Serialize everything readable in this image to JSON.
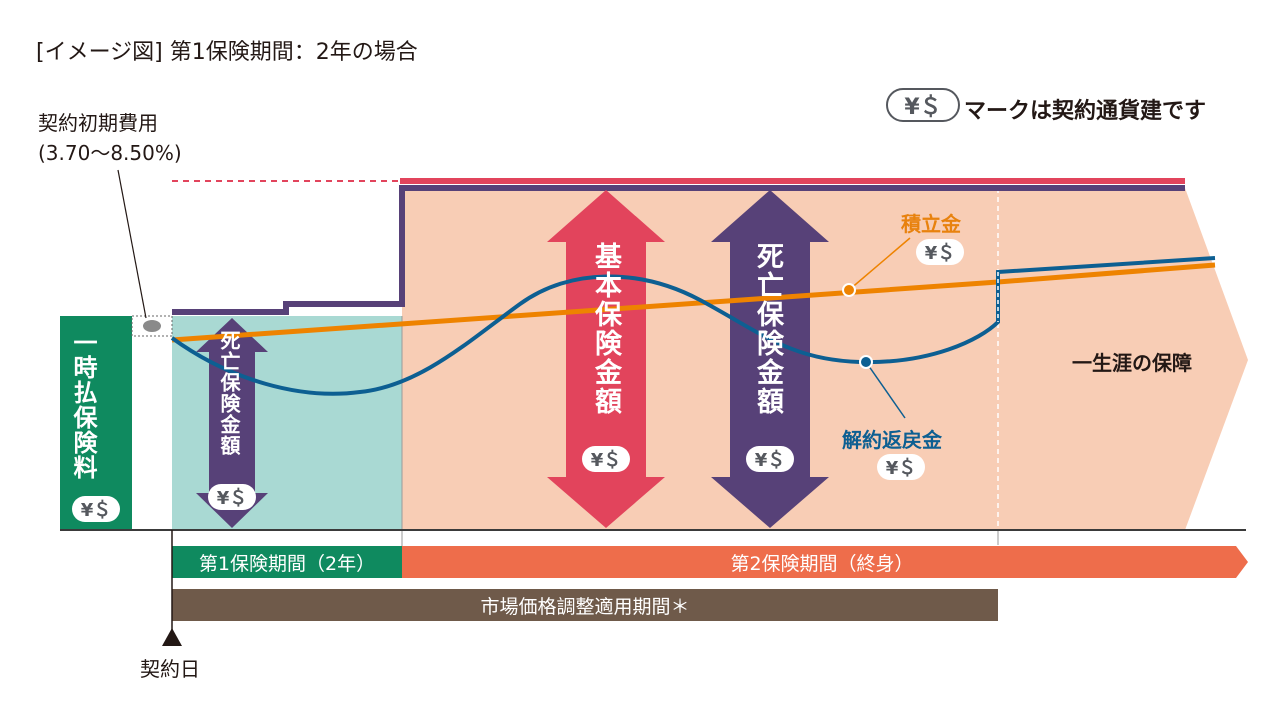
{
  "title": "[イメージ図] 第1保険期間：2年の場合",
  "legend": {
    "badge": "¥＄",
    "text": "マークは契約通貨建です"
  },
  "fee": {
    "line1": "契約初期費用",
    "line2": "(3.70〜8.50%)"
  },
  "lump_premium": {
    "label": "一時払保険料",
    "badge": "¥＄"
  },
  "death_benefit_period1": {
    "label": "死亡保険金額",
    "badge": "¥＄"
  },
  "basic_sum": {
    "label": "基本保険金額",
    "badge": "¥＄"
  },
  "death_benefit_period2": {
    "label": "死亡保険金額",
    "badge": "¥＄"
  },
  "reserve": {
    "label": "積立金",
    "badge": "¥＄"
  },
  "surrender": {
    "label": "解約返戻金",
    "badge": "¥＄"
  },
  "lifetime": "一生涯の保障",
  "periods": {
    "first": "第1保険期間（2年）",
    "second": "第2保険期間（終身）",
    "mva": "市場価格調整適用期間＊"
  },
  "contract_date": "契約日",
  "colors": {
    "green": "#0f8a5f",
    "teal_bg": "#a9d9d3",
    "peach_bg": "#f8cdb5",
    "purple": "#574178",
    "red": "#e2445c",
    "orange_line": "#ee8300",
    "blue_line": "#0d5f92",
    "period2_bar": "#ee6d4b",
    "mva_bar": "#6f5a4a"
  }
}
